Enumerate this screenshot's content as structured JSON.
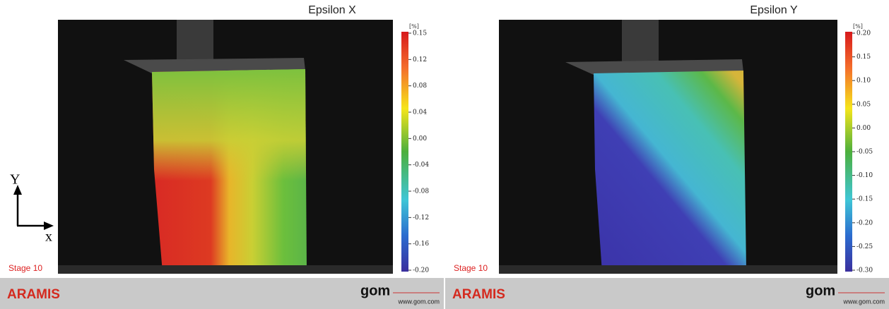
{
  "axes_indicator": {
    "y": "Y",
    "x": "x"
  },
  "panels": [
    {
      "title": "Epsilon X",
      "unit": "[%]",
      "scale_labels": [
        "0.15",
        "0.12",
        "0.08",
        "0.04",
        "0.00",
        "-0.04",
        "-0.08",
        "-0.12",
        "-0.16",
        "-0.20"
      ],
      "stage": "Stage 10",
      "brand": "ARAMIS",
      "logo": "gom",
      "url": "www.gom.com"
    },
    {
      "title": "Epsilon Y",
      "unit": "[%]",
      "scale_labels": [
        "0.20",
        "0.15",
        "0.10",
        "0.05",
        "0.00",
        "-0.05",
        "-0.10",
        "-0.15",
        "-0.20",
        "-0.25",
        "-0.30"
      ],
      "stage": "Stage 10",
      "brand": "ARAMIS",
      "logo": "gom",
      "url": "www.gom.com"
    }
  ]
}
